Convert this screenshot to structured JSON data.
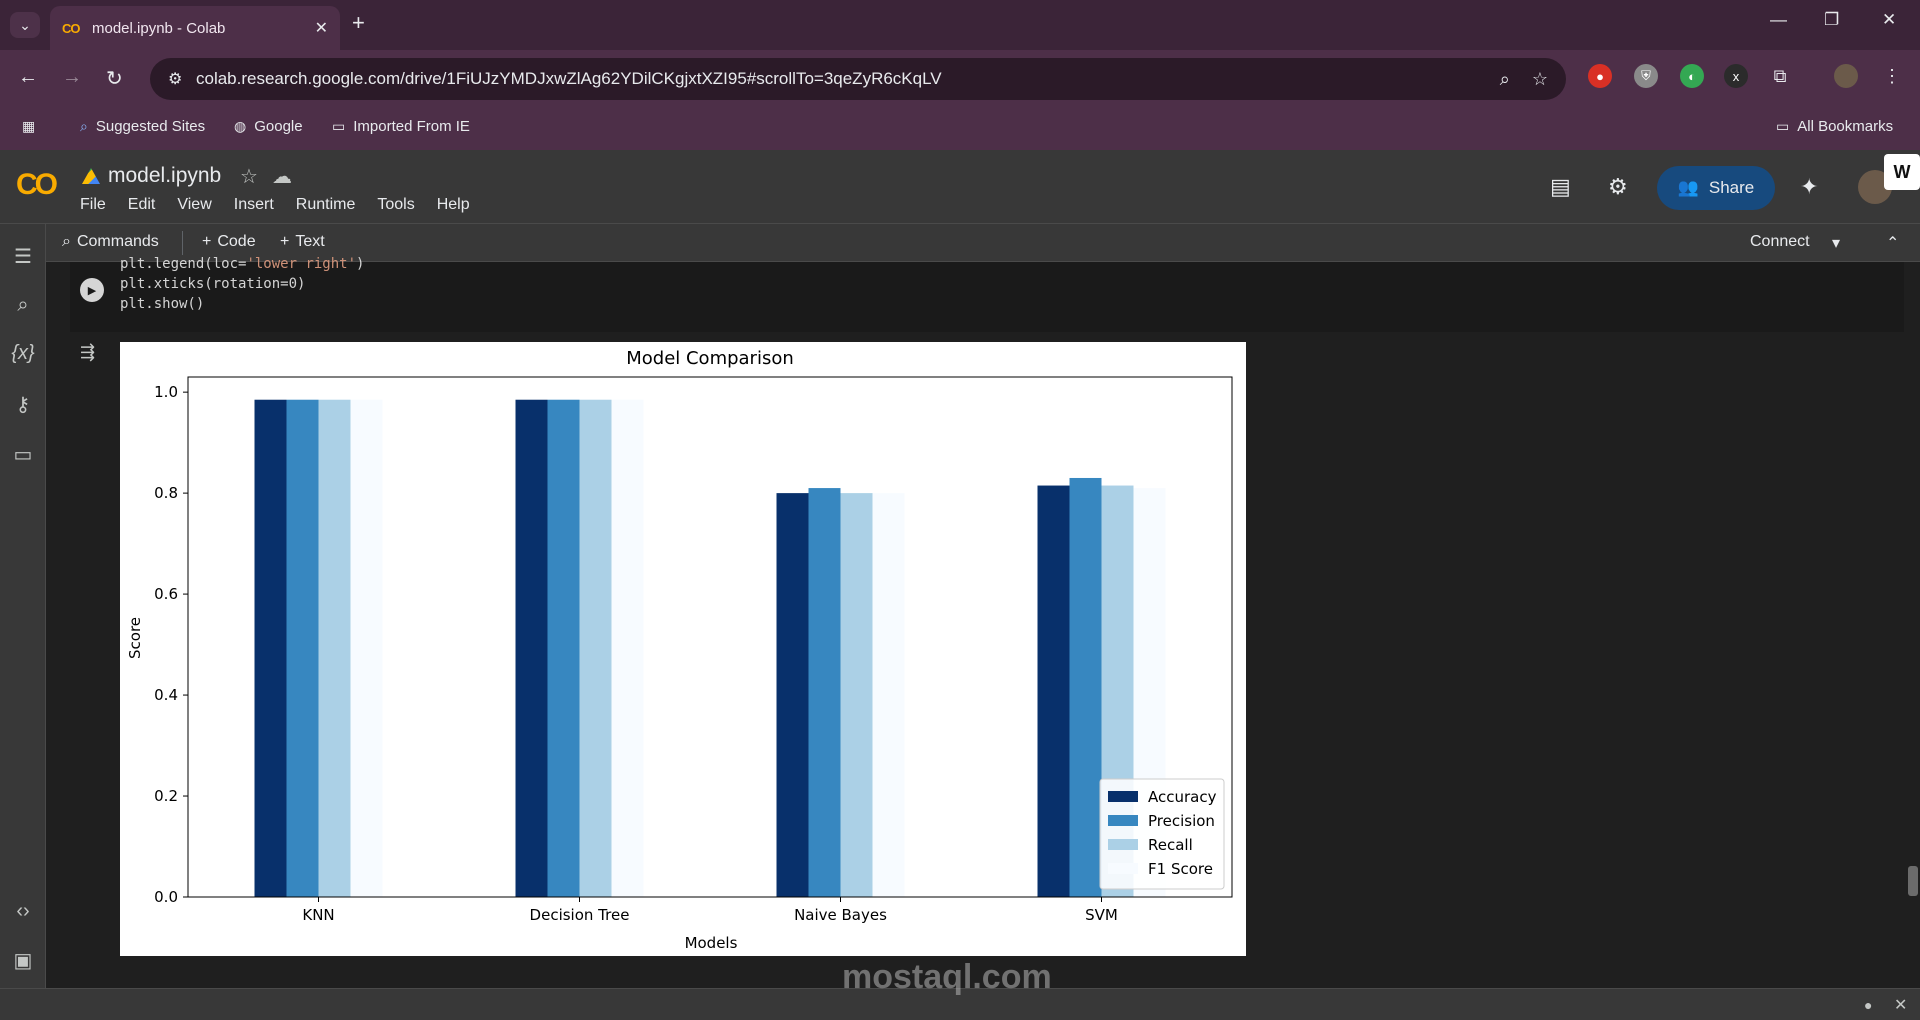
{
  "browser": {
    "tab_title": "model.ipynb - Colab",
    "tab_close": "✕",
    "new_tab": "+",
    "url": "colab.research.google.com/drive/1FiUJzYMDJxwZlAg62YDilCKgjxtXZI95#scrollTo=3qeZyR6cKqLV",
    "window_controls": {
      "minimize": "—",
      "restore": "❐",
      "close": "✕"
    },
    "bookmarks": [
      "Suggested Sites",
      "Google",
      "Imported From IE"
    ],
    "all_bookmarks": "All Bookmarks"
  },
  "colab": {
    "logo": "CO",
    "notebook_name": "model.ipynb",
    "menu": [
      "File",
      "Edit",
      "View",
      "Insert",
      "Runtime",
      "Tools",
      "Help"
    ],
    "share_label": "Share",
    "toolbar": {
      "commands": "Commands",
      "code": "Code",
      "text": "Text",
      "connect": "Connect"
    },
    "w_badge": "W"
  },
  "cell": {
    "lines": [
      {
        "prefix": "plt.legend(loc=",
        "string": "'lower right'",
        "suffix": ")"
      },
      {
        "prefix": "plt.xticks(rotation=0)",
        "string": "",
        "suffix": ""
      },
      {
        "prefix": "plt.show()",
        "string": "",
        "suffix": ""
      }
    ]
  },
  "chart_data": {
    "type": "bar",
    "title": "Model Comparison",
    "xlabel": "Models",
    "ylabel": "Score",
    "ylim": [
      0,
      1.03
    ],
    "yticks": [
      "0.0",
      "0.2",
      "0.4",
      "0.6",
      "0.8",
      "1.0"
    ],
    "categories": [
      "KNN",
      "Decision Tree",
      "Naive Bayes",
      "SVM"
    ],
    "series": [
      {
        "name": "Accuracy",
        "color": "#08306b",
        "values": [
          0.985,
          0.985,
          0.8,
          0.815
        ]
      },
      {
        "name": "Precision",
        "color": "#3787c0",
        "values": [
          0.985,
          0.985,
          0.81,
          0.83
        ]
      },
      {
        "name": "Recall",
        "color": "#abd0e6",
        "values": [
          0.985,
          0.985,
          0.8,
          0.815
        ]
      },
      {
        "name": "F1 Score",
        "color": "#f7fbff",
        "values": [
          0.985,
          0.985,
          0.8,
          0.81
        ]
      }
    ],
    "legend_position": "lower right",
    "grid": false
  },
  "watermark": "mostaql.com"
}
